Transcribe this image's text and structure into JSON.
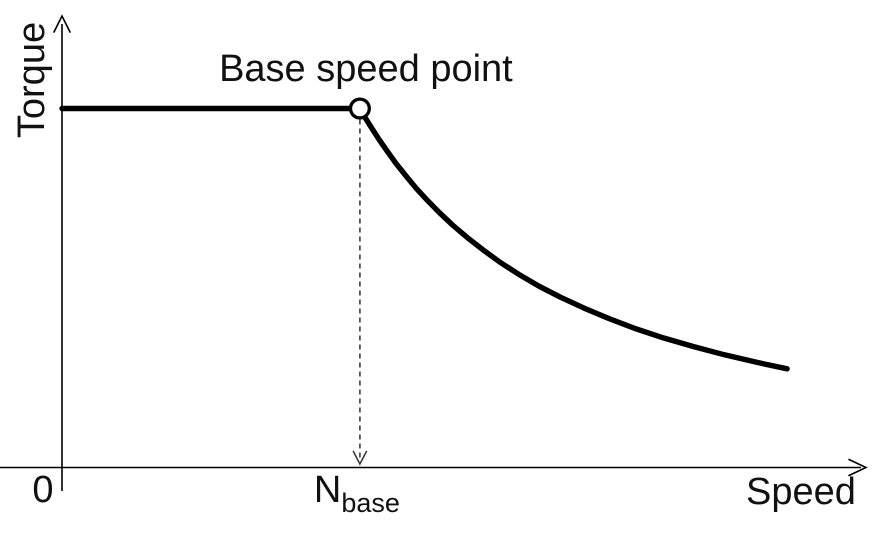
{
  "chart_data": {
    "type": "line",
    "title": "",
    "xlabel": "Speed",
    "ylabel": "Torque",
    "origin_label": "0",
    "axes": {
      "x_range_norm": [
        0,
        1.0
      ],
      "y_range_norm": [
        0,
        1.26
      ],
      "grid": false,
      "arrowheads": "open",
      "x_axis_extends_left_of_origin": true
    },
    "annotations": {
      "base_speed_point": {
        "label": "Base speed point",
        "x": 0.371,
        "y": 1.0,
        "marker": "open-circle",
        "dropline": "dashed-arrow-down-to-x-axis"
      },
      "x_tick_nbase": {
        "text_main": "N",
        "text_sub": "base",
        "x": 0.371
      }
    },
    "series": [
      {
        "name": "constant-torque-region",
        "points": [
          [
            0,
            1.0
          ],
          [
            0.371,
            1.0
          ]
        ]
      },
      {
        "name": "field-weakening-region",
        "points": [
          [
            0.371,
            1.0
          ],
          [
            0.378,
            0.973
          ],
          [
            0.386,
            0.944
          ],
          [
            0.395,
            0.913
          ],
          [
            0.405,
            0.881
          ],
          [
            0.416,
            0.847
          ],
          [
            0.428,
            0.813
          ],
          [
            0.441,
            0.778
          ],
          [
            0.455,
            0.744
          ],
          [
            0.47,
            0.71
          ],
          [
            0.487,
            0.674
          ],
          [
            0.505,
            0.64
          ],
          [
            0.525,
            0.605
          ],
          [
            0.546,
            0.571
          ],
          [
            0.569,
            0.538
          ],
          [
            0.594,
            0.505
          ],
          [
            0.621,
            0.474
          ],
          [
            0.65,
            0.444
          ],
          [
            0.681,
            0.415
          ],
          [
            0.714,
            0.387
          ],
          [
            0.749,
            0.361
          ],
          [
            0.786,
            0.337
          ],
          [
            0.825,
            0.314
          ],
          [
            0.865,
            0.293
          ],
          [
            0.903,
            0.275
          ]
        ]
      }
    ]
  },
  "colors": {
    "line": "#000000",
    "text": "#111111",
    "dashed_line": "#3d3d3d",
    "marker_fill": "#ffffff",
    "background": "#ffffff"
  }
}
